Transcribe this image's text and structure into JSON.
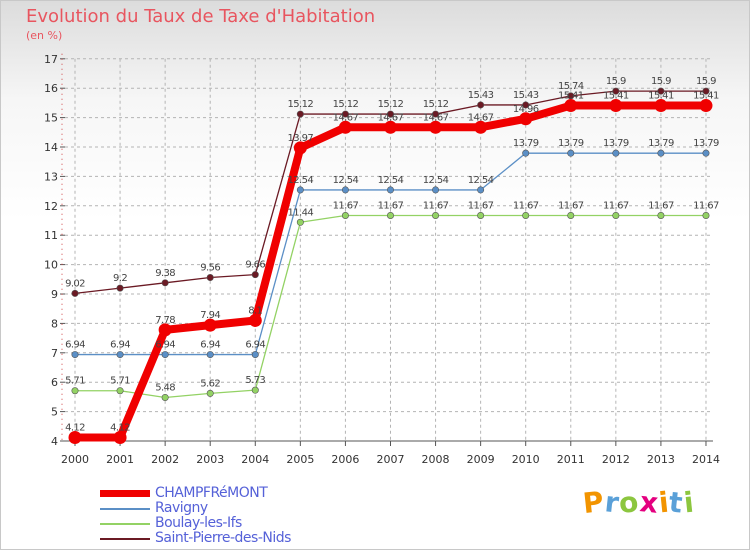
{
  "chart_data": {
    "type": "line",
    "title": "Evolution du Taux de Taxe d'Habitation",
    "ylabel": "(en %)",
    "xlabel": "",
    "ylim": [
      4,
      17
    ],
    "yticks": [
      "4",
      "5",
      "6",
      "7",
      "8",
      "9",
      "10",
      "11",
      "12",
      "13",
      "14",
      "15",
      "16",
      "17"
    ],
    "categories": [
      "2000",
      "2001",
      "2002",
      "2003",
      "2004",
      "2005",
      "2006",
      "2007",
      "2008",
      "2009",
      "2010",
      "2011",
      "2012",
      "2013",
      "2014"
    ],
    "grid": true,
    "series": [
      {
        "name": "Saint-Pierre-des-Nids",
        "color": "#6b1a24",
        "values": [
          9.02,
          9.2,
          9.38,
          9.56,
          9.66,
          15.12,
          15.12,
          15.12,
          15.12,
          15.43,
          15.43,
          15.74,
          15.9,
          15.9,
          15.9
        ],
        "labels": [
          "9.02",
          "9.2",
          "9.38",
          "9.56",
          "9.66",
          "15.12",
          "15.12",
          "15.12",
          "15.12",
          "15.43",
          "15.43",
          "15.74",
          "15.9",
          "15.9",
          "15.9"
        ]
      },
      {
        "name": "Ravigny",
        "color": "#5b8fc6",
        "values": [
          6.94,
          6.94,
          6.94,
          6.94,
          6.94,
          12.54,
          12.54,
          12.54,
          12.54,
          12.54,
          13.79,
          13.79,
          13.79,
          13.79,
          13.79
        ],
        "labels": [
          "6.94",
          "6.94",
          "6.94",
          "6.94",
          "6.94",
          "12.54",
          "12.54",
          "12.54",
          "12.54",
          "12.54",
          "13.79",
          "13.79",
          "13.79",
          "13.79",
          "13.79"
        ]
      },
      {
        "name": "Boulay-les-Ifs",
        "color": "#93d264",
        "values": [
          5.71,
          5.71,
          5.48,
          5.62,
          5.73,
          11.44,
          11.67,
          11.67,
          11.67,
          11.67,
          11.67,
          11.67,
          11.67,
          11.67,
          11.67
        ],
        "labels": [
          "5.71",
          "5.71",
          "5.48",
          "5.62",
          "5.73",
          "11.44",
          "11.67",
          "11.67",
          "11.67",
          "11.67",
          "11.67",
          "11.67",
          "11.67",
          "11.67",
          "11.67"
        ]
      },
      {
        "name": "CHAMPFRéMONT",
        "color": "#f00000",
        "values": [
          4.12,
          4.12,
          7.78,
          7.94,
          8.1,
          13.97,
          14.67,
          14.67,
          14.67,
          14.67,
          14.96,
          15.41,
          15.41,
          15.41,
          15.41
        ],
        "labels": [
          "4.12",
          "4.12",
          "7.78",
          "7.94",
          "8.1",
          "13.97",
          "14.67",
          "14.67",
          "14.67",
          "14.67",
          "14.96",
          "15.41",
          "15.41",
          "15.41",
          "15.41"
        ]
      }
    ],
    "legend": [
      "CHAMPFRéMONT",
      "Ravigny",
      "Boulay-les-Ifs",
      "Saint-Pierre-des-Nids"
    ],
    "legend_position": "bottom-left"
  },
  "brand": {
    "letters": [
      "P",
      "r",
      "o",
      "x",
      "i",
      "t",
      "i"
    ],
    "colors": [
      "#f29400",
      "#5aa0d8",
      "#8cc63f",
      "#e4007f",
      "#f29400",
      "#5aa0d8",
      "#8cc63f"
    ]
  }
}
